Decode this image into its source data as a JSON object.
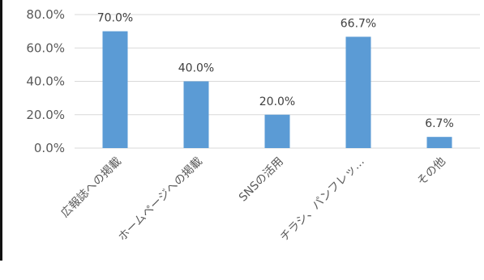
{
  "chart_data": {
    "type": "bar",
    "title": "",
    "xlabel": "",
    "ylabel": "",
    "categories": [
      "広報誌への掲載",
      "ホームページへの掲載",
      "SNSの活用",
      "チラシ、パンフレッ…",
      "その他"
    ],
    "values": [
      70.0,
      40.0,
      20.0,
      66.7,
      6.7
    ],
    "data_labels": [
      "70.0%",
      "40.0%",
      "20.0%",
      "66.7%",
      "6.7%"
    ],
    "ylim": [
      0,
      80
    ],
    "yticks": [
      0,
      20,
      40,
      60,
      80
    ],
    "ytick_labels": [
      "0.0%",
      "20.0%",
      "40.0%",
      "60.0%",
      "80.0%"
    ],
    "gridlines": true,
    "legend": "none",
    "colors": {
      "bar": "#5b9bd5",
      "grid": "#d9d9d9",
      "text": "#595959",
      "label": "#404040"
    }
  }
}
